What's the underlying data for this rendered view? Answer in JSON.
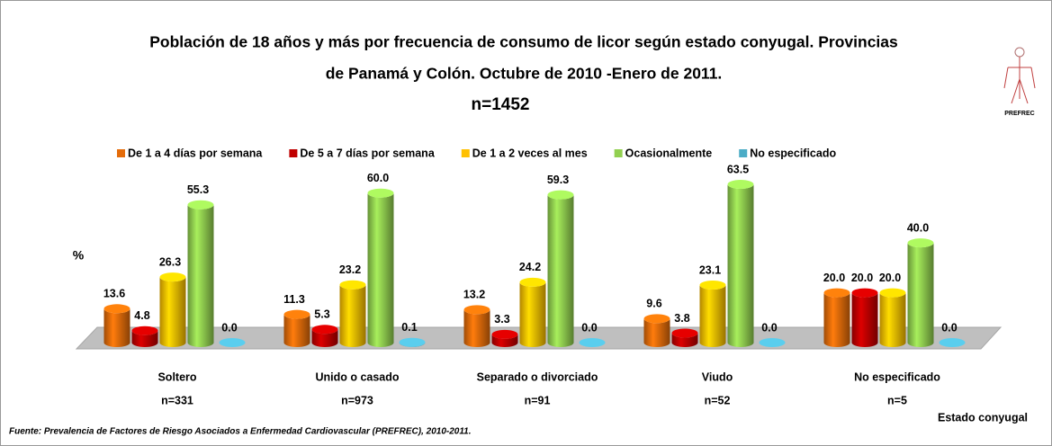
{
  "chart_data": {
    "type": "bar3d",
    "title": [
      "Población de 18 años y más por frecuencia de consumo de licor según estado conyugal. Provincias",
      "de Panamá y Colón. Octubre de 2010 -Enero de 2011."
    ],
    "subtitle": "n=1452",
    "y_label": "%",
    "x_label": "Estado conyugal",
    "source": "Fuente: Prevalencia de Factores de Riesgo Asociados a Enfermedad Cardiovascular (PREFREC), 2010-2011.",
    "logo_text": "PREFREC",
    "categories": [
      "Soltero",
      "Unido o casado",
      "Separado o divorciado",
      "Viudo",
      "No especificado"
    ],
    "sample_sizes": [
      "n=331",
      "n=973",
      "n=91",
      "n=52",
      "n=5"
    ],
    "ylim": [
      0,
      70
    ],
    "series": [
      {
        "name": "De 1 a 4 días por semana",
        "color": "#e46c0a",
        "values": [
          13.6,
          11.3,
          13.2,
          9.6,
          20.0
        ],
        "value_labels": [
          "13.6",
          "11.3",
          "13.2",
          "9.6",
          "20.0"
        ]
      },
      {
        "name": "De 5 a 7 días por semana",
        "color": "#c00000",
        "values": [
          4.8,
          5.3,
          3.3,
          3.8,
          20.0
        ],
        "value_labels": [
          "4.8",
          "5.3",
          "3.3",
          "3.8",
          "20.0"
        ]
      },
      {
        "name": "De 1 a 2 veces al mes",
        "color": "#ffc000",
        "values": [
          26.3,
          23.2,
          24.2,
          23.1,
          20.0
        ],
        "value_labels": [
          "26.3",
          "23.2",
          "24.2",
          "23.1",
          "20.0"
        ]
      },
      {
        "name": "Ocasionalmente",
        "color": "#92d050",
        "values": [
          55.3,
          60.0,
          59.3,
          63.5,
          40.0
        ],
        "value_labels": [
          "55.3",
          "60.0",
          "59.3",
          "63.5",
          "40.0"
        ]
      },
      {
        "name": "No especificado",
        "color": "#4bacc6",
        "values": [
          0.0,
          0.1,
          0.0,
          0.0,
          0.0
        ],
        "value_labels": [
          "0.0",
          "0.1",
          "0.0",
          "0.0",
          "0.0"
        ]
      }
    ]
  }
}
